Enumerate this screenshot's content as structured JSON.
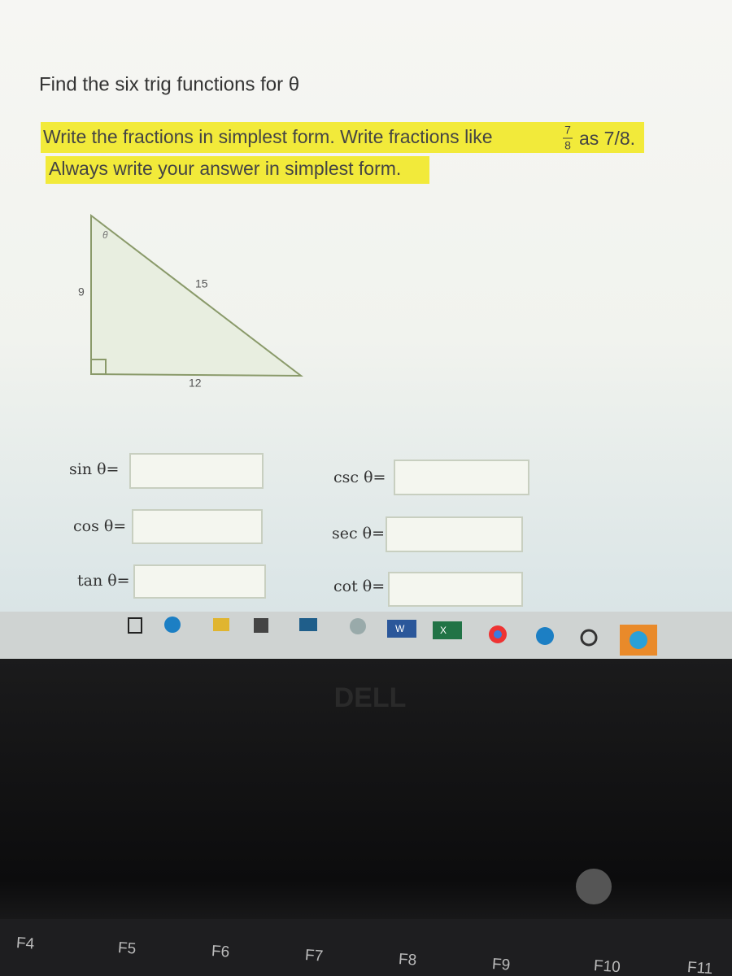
{
  "question": {
    "title": "Find the six trig functions for θ",
    "instruction": {
      "before_fraction": "Write the fractions in simplest form. Write fractions like",
      "fraction": {
        "numerator": "7",
        "denominator": "8"
      },
      "after_fraction": "as 7/8.",
      "second_line": "Always write your answer in simplest form."
    }
  },
  "triangle": {
    "angle_label": "θ",
    "vertical_side": "9",
    "hypotenuse": "15",
    "horizontal_side": "12"
  },
  "inputs": [
    {
      "label": "sin θ="
    },
    {
      "label": "cos θ="
    },
    {
      "label": "tan θ="
    },
    {
      "label": "csc θ="
    },
    {
      "label": "sec θ="
    },
    {
      "label": "cot θ="
    }
  ],
  "taskbar": {
    "word_icon": "W",
    "excel_icon": "X"
  },
  "laptop": {
    "brand": "DELL",
    "keys": [
      "F4",
      "F5",
      "F6",
      "F7",
      "F8",
      "F9",
      "F10",
      "F11"
    ]
  }
}
